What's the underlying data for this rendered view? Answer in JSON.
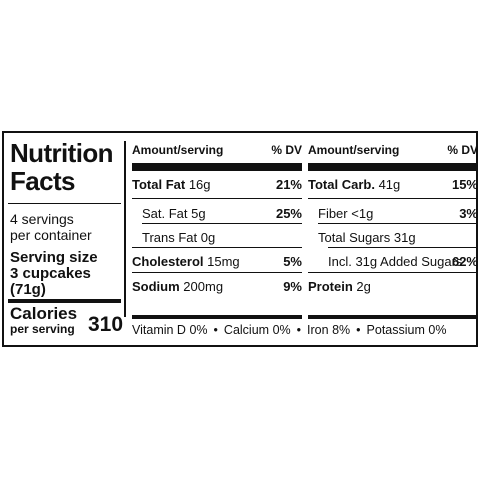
{
  "title_line1": "Nutrition",
  "title_line2": "Facts",
  "servings_line1": "4 servings",
  "servings_line2": "per container",
  "serving_size_label": "Serving size",
  "serving_size_value": "3 cupcakes (71g)",
  "calories_label": "Calories",
  "calories_sub": "per serving",
  "calories_value": "310",
  "header": {
    "amount": "Amount/serving",
    "dv": "% DV"
  },
  "col_a": [
    {
      "name": "Total Fat",
      "amount": "16g",
      "dv": "21%",
      "bold": true
    },
    {
      "name": "Sat. Fat",
      "amount": "5g",
      "dv": "25%",
      "bold": false
    },
    {
      "name": "Trans Fat",
      "amount": "0g",
      "dv": "",
      "bold": false
    },
    {
      "name": "Cholesterol",
      "amount": "15mg",
      "dv": "5%",
      "bold": true
    },
    {
      "name": "Sodium",
      "amount": "200mg",
      "dv": "9%",
      "bold": true
    }
  ],
  "col_b": [
    {
      "name": "Total Carb.",
      "amount": "41g",
      "dv": "15%",
      "bold": true
    },
    {
      "name": "Fiber",
      "amount": "<1g",
      "dv": "3%",
      "bold": false
    },
    {
      "name": "Total Sugars",
      "amount": "31g",
      "dv": "",
      "bold": false
    },
    {
      "name": "Incl. 31g Added Sugars",
      "amount": "",
      "dv": "62%",
      "bold": false
    },
    {
      "name": "Protein",
      "amount": "2g",
      "dv": "",
      "bold": true
    }
  ],
  "vitamins": [
    {
      "name": "Vitamin D",
      "value": "0%"
    },
    {
      "name": "Calcium",
      "value": "0%"
    },
    {
      "name": "Iron",
      "value": "8%"
    },
    {
      "name": "Potassium",
      "value": "0%"
    }
  ]
}
